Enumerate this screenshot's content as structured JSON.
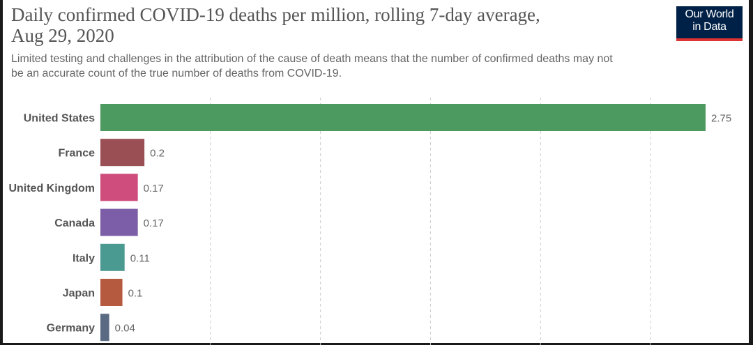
{
  "header": {
    "title_line1": "Daily confirmed COVID-19 deaths per million, rolling 7-day average,",
    "title_line2": "Aug 29, 2020",
    "subtitle_line1": "Limited testing and challenges in the attribution of the cause of death means that the number of confirmed deaths may not",
    "subtitle_line2": "be an accurate count of the true number of deaths from COVID-19."
  },
  "logo": {
    "line1": "Our World",
    "line2": "in Data",
    "background": "#002147",
    "accent": "#dd3333"
  },
  "chart_data": {
    "type": "bar",
    "orientation": "horizontal",
    "categories": [
      "United States",
      "France",
      "United Kingdom",
      "Canada",
      "Italy",
      "Japan",
      "Germany"
    ],
    "values": [
      2.75,
      0.2,
      0.17,
      0.17,
      0.11,
      0.1,
      0.04
    ],
    "value_labels": [
      "2.75",
      "0.2",
      "0.17",
      "0.17",
      "0.11",
      "0.1",
      "0.04"
    ],
    "colors": [
      "#4c9a5f",
      "#9a4f55",
      "#cf4d7d",
      "#7b5ea7",
      "#4a9a91",
      "#b65a3f",
      "#5b6a83"
    ],
    "xlim": [
      0,
      2.75
    ],
    "gridlines": [
      0.5,
      1,
      1.5,
      2,
      2.5
    ],
    "grid": true
  }
}
